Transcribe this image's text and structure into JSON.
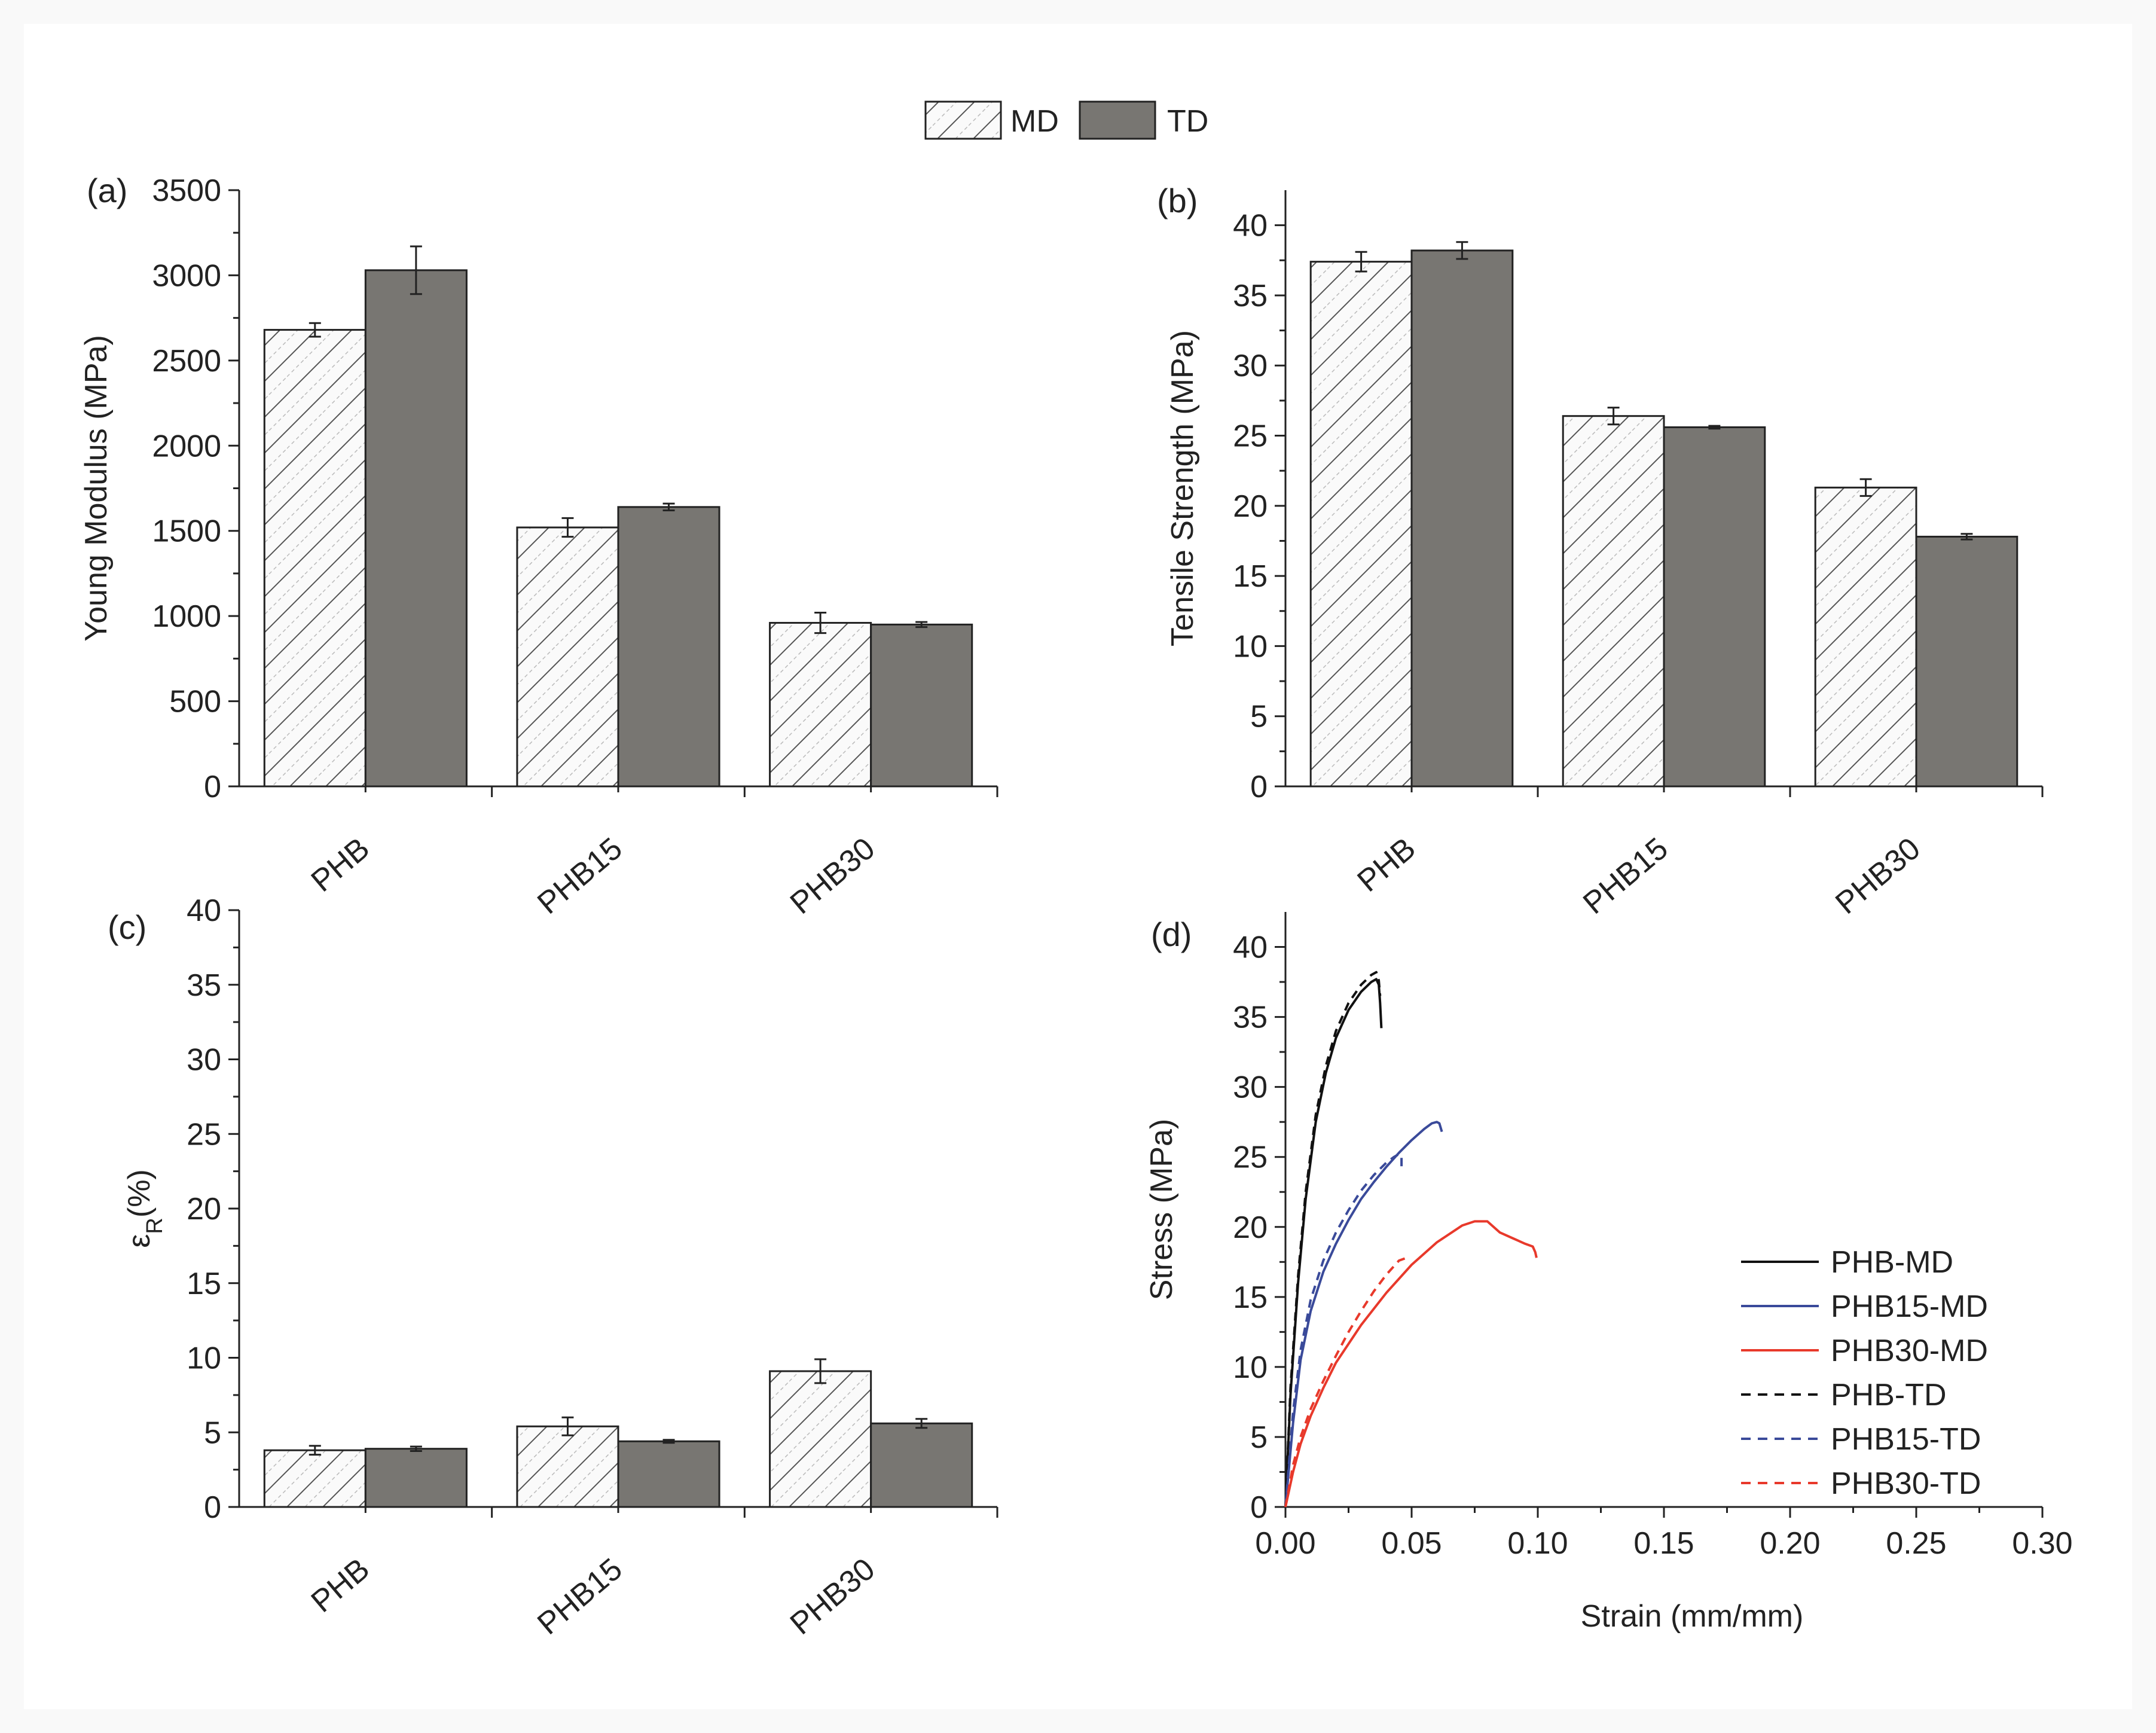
{
  "legend": {
    "items": [
      {
        "label": "MD",
        "style": "hatched"
      },
      {
        "label": "TD",
        "style": "solid",
        "color": "#787672"
      }
    ]
  },
  "chart_data": [
    {
      "panel": "(a)",
      "type": "bar",
      "categories": [
        "PHB",
        "PHB15",
        "PHB30"
      ],
      "series": [
        {
          "name": "MD",
          "values": [
            2680,
            1520,
            960
          ],
          "errors": [
            40,
            55,
            60
          ]
        },
        {
          "name": "TD",
          "values": [
            3030,
            1640,
            950
          ],
          "errors": [
            140,
            20,
            15
          ]
        }
      ],
      "xlabel": "",
      "ylabel": "Young Modulus (MPa)",
      "ylim": [
        0,
        3500
      ],
      "yticks": [
        0,
        500,
        1000,
        1500,
        2000,
        2500,
        3000,
        3500
      ]
    },
    {
      "panel": "(b)",
      "type": "bar",
      "categories": [
        "PHB",
        "PHB15",
        "PHB30"
      ],
      "series": [
        {
          "name": "MD",
          "values": [
            37.4,
            26.4,
            21.3
          ],
          "errors": [
            0.7,
            0.6,
            0.6
          ]
        },
        {
          "name": "TD",
          "values": [
            38.2,
            25.6,
            17.8
          ],
          "errors": [
            0.6,
            0.1,
            0.2
          ]
        }
      ],
      "xlabel": "",
      "ylabel": "Tensile Strength (MPa)",
      "ylim": [
        0,
        42.5
      ],
      "yticks": [
        0,
        5,
        10,
        15,
        20,
        25,
        30,
        35,
        40
      ]
    },
    {
      "panel": "(c)",
      "type": "bar",
      "categories": [
        "PHB",
        "PHB15",
        "PHB30"
      ],
      "series": [
        {
          "name": "MD",
          "values": [
            3.8,
            5.4,
            9.1
          ],
          "errors": [
            0.3,
            0.6,
            0.8
          ]
        },
        {
          "name": "TD",
          "values": [
            3.9,
            4.4,
            5.6
          ],
          "errors": [
            0.15,
            0.1,
            0.3
          ]
        }
      ],
      "xlabel": "",
      "ylabel_main": "ε",
      "ylabel_sub": "R",
      "ylabel_tail": "(%)",
      "ylim": [
        0,
        40
      ],
      "yticks": [
        0,
        5,
        10,
        15,
        20,
        25,
        30,
        35,
        40
      ]
    },
    {
      "panel": "(d)",
      "type": "line",
      "xlabel": "Strain (mm/mm)",
      "ylabel": "Stress (MPa)",
      "xlim": [
        0,
        0.3
      ],
      "ylim": [
        0,
        42.5
      ],
      "xticks": [
        "0.00",
        "0.05",
        "0.10",
        "0.15",
        "0.20",
        "0.25",
        "0.30"
      ],
      "yticks": [
        0,
        5,
        10,
        15,
        20,
        25,
        30,
        35,
        40
      ],
      "legend_position": "bottom-right",
      "series": [
        {
          "name": "PHB-MD",
          "color": "#111111",
          "dash": "solid",
          "x": [
            0,
            0.002,
            0.005,
            0.008,
            0.012,
            0.016,
            0.02,
            0.025,
            0.03,
            0.034,
            0.036,
            0.037,
            0.0375,
            0.038
          ],
          "y": [
            0,
            8,
            16,
            22,
            27.5,
            31,
            33.5,
            35.5,
            36.8,
            37.5,
            37.7,
            37.3,
            36.0,
            34.2
          ]
        },
        {
          "name": "PHB15-MD",
          "color": "#3a4a9a",
          "dash": "solid",
          "x": [
            0,
            0.003,
            0.006,
            0.01,
            0.015,
            0.02,
            0.025,
            0.03,
            0.035,
            0.04,
            0.045,
            0.05,
            0.055,
            0.058,
            0.06,
            0.061,
            0.062
          ],
          "y": [
            0,
            6,
            10.5,
            14,
            16.8,
            18.8,
            20.5,
            22,
            23.2,
            24.3,
            25.3,
            26.2,
            27.0,
            27.4,
            27.5,
            27.4,
            26.8
          ]
        },
        {
          "name": "PHB30-MD",
          "color": "#e8392b",
          "dash": "solid",
          "x": [
            0,
            0.003,
            0.006,
            0.01,
            0.015,
            0.02,
            0.03,
            0.04,
            0.05,
            0.06,
            0.07,
            0.075,
            0.08,
            0.085,
            0.09,
            0.095,
            0.098,
            0.099,
            0.0995
          ],
          "y": [
            0,
            2.5,
            4.5,
            6.5,
            8.5,
            10.3,
            13,
            15.3,
            17.3,
            18.9,
            20.1,
            20.4,
            20.4,
            19.6,
            19.2,
            18.8,
            18.6,
            18.2,
            17.8
          ]
        },
        {
          "name": "PHB-TD",
          "color": "#111111",
          "dash": "dashed",
          "x": [
            0,
            0.002,
            0.005,
            0.008,
            0.012,
            0.016,
            0.02,
            0.025,
            0.03,
            0.034,
            0.036,
            0.037,
            0.0375
          ],
          "y": [
            0,
            8.5,
            16.5,
            22.5,
            28,
            31.5,
            34,
            36,
            37.3,
            38.0,
            38.2,
            37.6,
            36.5
          ]
        },
        {
          "name": "PHB15-TD",
          "color": "#3a4a9a",
          "dash": "dashed",
          "x": [
            0,
            0.003,
            0.006,
            0.01,
            0.015,
            0.02,
            0.025,
            0.03,
            0.035,
            0.04,
            0.043,
            0.045,
            0.046,
            0.046
          ],
          "y": [
            0,
            6.8,
            11.2,
            14.8,
            17.6,
            19.6,
            21.2,
            22.6,
            23.7,
            24.6,
            25.0,
            25.2,
            25.0,
            24.2
          ]
        },
        {
          "name": "PHB30-TD",
          "color": "#e8392b",
          "dash": "dashed",
          "x": [
            0,
            0.003,
            0.006,
            0.01,
            0.015,
            0.02,
            0.025,
            0.03,
            0.035,
            0.04,
            0.043,
            0.045,
            0.048
          ],
          "y": [
            0,
            3,
            5,
            7,
            9,
            10.8,
            12.5,
            14,
            15.4,
            16.6,
            17.2,
            17.6,
            17.8
          ]
        }
      ]
    }
  ]
}
